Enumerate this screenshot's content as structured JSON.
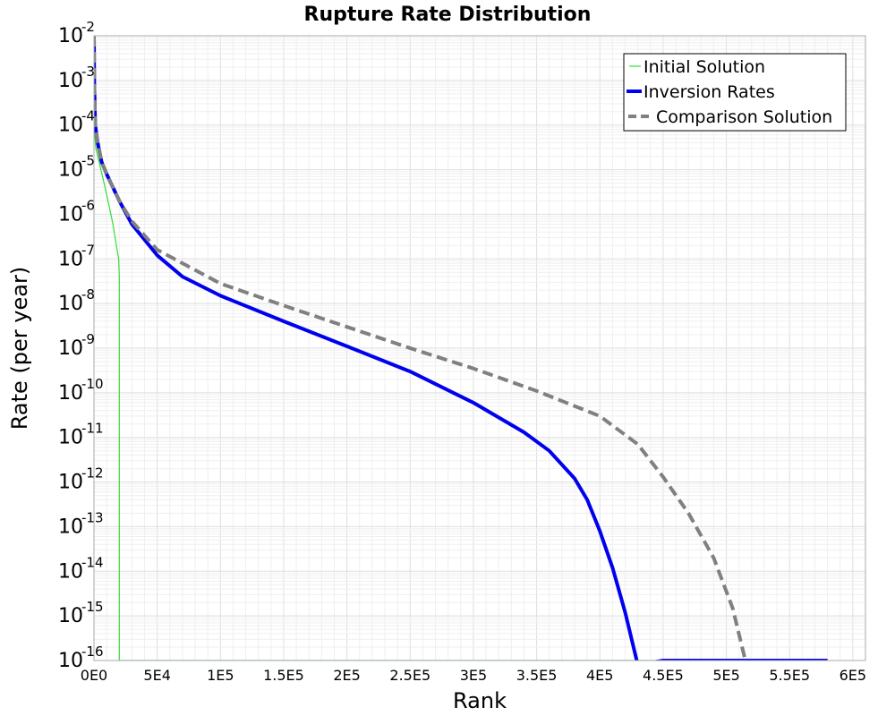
{
  "chart_data": {
    "type": "line",
    "title": "Rupture Rate Distribution",
    "xlabel": "Rank",
    "ylabel": "Rate (per year)",
    "xlim": [
      0,
      610000
    ],
    "ylim": [
      1e-16,
      0.01
    ],
    "yscale": "log",
    "grid": true,
    "legend_position": "top-right",
    "x_ticks": [
      0,
      50000,
      100000,
      150000,
      200000,
      250000,
      300000,
      350000,
      400000,
      450000,
      500000,
      550000,
      600000
    ],
    "x_tick_labels": [
      "0E0",
      "5E4",
      "1E5",
      "1.5E5",
      "2E5",
      "2.5E5",
      "3E5",
      "3.5E5",
      "4E5",
      "4.5E5",
      "5E5",
      "5.5E5",
      "6E5"
    ],
    "y_tick_base": "10",
    "y_tick_exponents": [
      "-2",
      "-3",
      "-4",
      "-5",
      "-6",
      "-7",
      "-8",
      "-9",
      "-10",
      "-11",
      "-12",
      "-13",
      "-14",
      "-15",
      "-16"
    ],
    "series": [
      {
        "name": "Initial Solution",
        "color": "#33dd33",
        "style": "solid",
        "width": 1.2,
        "points": [
          [
            0,
            0.0001
          ],
          [
            1500,
            3e-05
          ],
          [
            4000,
            1.5e-05
          ],
          [
            8000,
            5e-06
          ],
          [
            12000,
            1.5e-06
          ],
          [
            15000,
            6e-07
          ],
          [
            18000,
            1.8e-07
          ],
          [
            19500,
            1e-07
          ],
          [
            20000,
            4e-08
          ],
          [
            20000,
            1e-16
          ],
          [
            580000,
            1e-16
          ]
        ]
      },
      {
        "name": "Inversion Rates",
        "color": "#0000ee",
        "style": "solid",
        "width": 4,
        "points": [
          [
            0,
            0.01
          ],
          [
            200,
            0.001
          ],
          [
            1000,
            0.0001
          ],
          [
            3000,
            4e-05
          ],
          [
            6000,
            1.5e-05
          ],
          [
            10000,
            8e-06
          ],
          [
            20000,
            2e-06
          ],
          [
            30000,
            6e-07
          ],
          [
            50000,
            1.2e-07
          ],
          [
            70000,
            4e-08
          ],
          [
            100000,
            1.5e-08
          ],
          [
            150000,
            4e-09
          ],
          [
            200000,
            1.1e-09
          ],
          [
            250000,
            3e-10
          ],
          [
            300000,
            6e-11
          ],
          [
            340000,
            1.3e-11
          ],
          [
            360000,
            5e-12
          ],
          [
            380000,
            1.2e-12
          ],
          [
            390000,
            4e-13
          ],
          [
            400000,
            8e-14
          ],
          [
            410000,
            1.2e-14
          ],
          [
            420000,
            1.2e-15
          ],
          [
            430000,
            8e-17
          ],
          [
            450000,
            1e-16
          ],
          [
            580000,
            1e-16
          ]
        ]
      },
      {
        "name": "Comparison Solution",
        "color": "#808080",
        "style": "dashed",
        "width": 4,
        "points": [
          [
            0,
            0.01
          ],
          [
            200,
            0.001
          ],
          [
            1000,
            0.0001
          ],
          [
            3000,
            4e-05
          ],
          [
            6000,
            1.5e-05
          ],
          [
            10000,
            8e-06
          ],
          [
            20000,
            2e-06
          ],
          [
            30000,
            7e-07
          ],
          [
            50000,
            1.6e-07
          ],
          [
            100000,
            2.8e-08
          ],
          [
            150000,
            9e-09
          ],
          [
            200000,
            3e-09
          ],
          [
            250000,
            1e-09
          ],
          [
            300000,
            3.5e-10
          ],
          [
            350000,
            1.1e-10
          ],
          [
            400000,
            3e-11
          ],
          [
            430000,
            7e-12
          ],
          [
            450000,
            1.3e-12
          ],
          [
            470000,
            2e-13
          ],
          [
            490000,
            2e-14
          ],
          [
            505000,
            1.5e-15
          ],
          [
            515000,
            1e-16
          ]
        ]
      }
    ]
  }
}
